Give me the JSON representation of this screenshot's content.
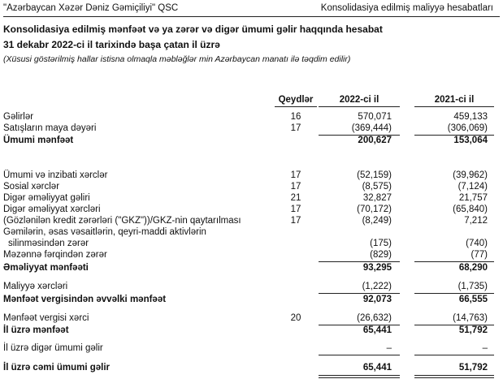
{
  "header": {
    "company": "\"Azərbaycan Xəzər Dəniz Gəmiçiliyi\" QSC",
    "section": "Konsolidasiya edilmiş maliyyə hesabatları"
  },
  "statement": {
    "title": "Konsolidasiya edilmiş mənfəət və ya zərər və digər ümumi gəlir haqqında hesabat",
    "subtitle": "31 dekabr 2022-ci il tarixində başa çatan il üzrə",
    "note": "(Xüsusi göstərilmiş hallar istisna olmaqla məbləğlər min Azərbaycan manatı ilə təqdim edilir)"
  },
  "columns": {
    "notes": "Qeydlər",
    "y2022": "2022-ci il",
    "y2021": "2021-ci il"
  },
  "rows": [
    {
      "label": "Gəlirlər",
      "note": "16",
      "v2022": "570,071",
      "v2021": "459,133"
    },
    {
      "label": "Satışların maya dəyəri",
      "note": "17",
      "v2022": "(369,444)",
      "v2021": "(306,069)"
    },
    {
      "label": "Ümumi mənfəət",
      "note": "",
      "v2022": "200,627",
      "v2021": "153,064"
    },
    {
      "label": "Ümumi və inzibati xərclər",
      "note": "17",
      "v2022": "(52,159)",
      "v2021": "(39,962)"
    },
    {
      "label": "Sosial xərclər",
      "note": "17",
      "v2022": "(8,575)",
      "v2021": "(7,124)"
    },
    {
      "label": "Digər əməliyyat gəliri",
      "note": "21",
      "v2022": "32,827",
      "v2021": "21,757"
    },
    {
      "label": "Digər əməliyyat xərcləri",
      "note": "17",
      "v2022": "(70,172)",
      "v2021": "(65,840)"
    },
    {
      "label": "(Gözlənilən kredit zərərləri (\"GKZ\"))/GKZ-nin qaytarılması",
      "note": "17",
      "v2022": "(8,249)",
      "v2021": "7,212"
    },
    {
      "label": "Gəmilərin, əsas vəsaitlərin, qeyri-maddi aktivlərin",
      "note": "",
      "v2022": "",
      "v2021": ""
    },
    {
      "label": "silinməsindən zərər",
      "note": "",
      "v2022": "(175)",
      "v2021": "(740)"
    },
    {
      "label": "Məzənnə fərqindən zərər",
      "note": "",
      "v2022": "(829)",
      "v2021": "(77)"
    },
    {
      "label": "Əməliyyat mənfəəti",
      "note": "",
      "v2022": "93,295",
      "v2021": "68,290"
    },
    {
      "label": "Maliyyə xərcləri",
      "note": "",
      "v2022": "(1,222)",
      "v2021": "(1,735)"
    },
    {
      "label": "Mənfəət vergisindən əvvəlki mənfəət",
      "note": "",
      "v2022": "92,073",
      "v2021": "66,555"
    },
    {
      "label": "Mənfəət vergisi xərci",
      "note": "20",
      "v2022": "(26,632)",
      "v2021": "(14,763)"
    },
    {
      "label": "İl üzrə mənfəət",
      "note": "",
      "v2022": "65,441",
      "v2021": "51,792"
    },
    {
      "label": "İl üzrə digər ümumi gəlir",
      "note": "",
      "v2022": "–",
      "v2021": "–"
    },
    {
      "label": "İl üzrə cəmi ümumi gəlir",
      "note": "",
      "v2022": "65,441",
      "v2021": "51,792"
    }
  ]
}
